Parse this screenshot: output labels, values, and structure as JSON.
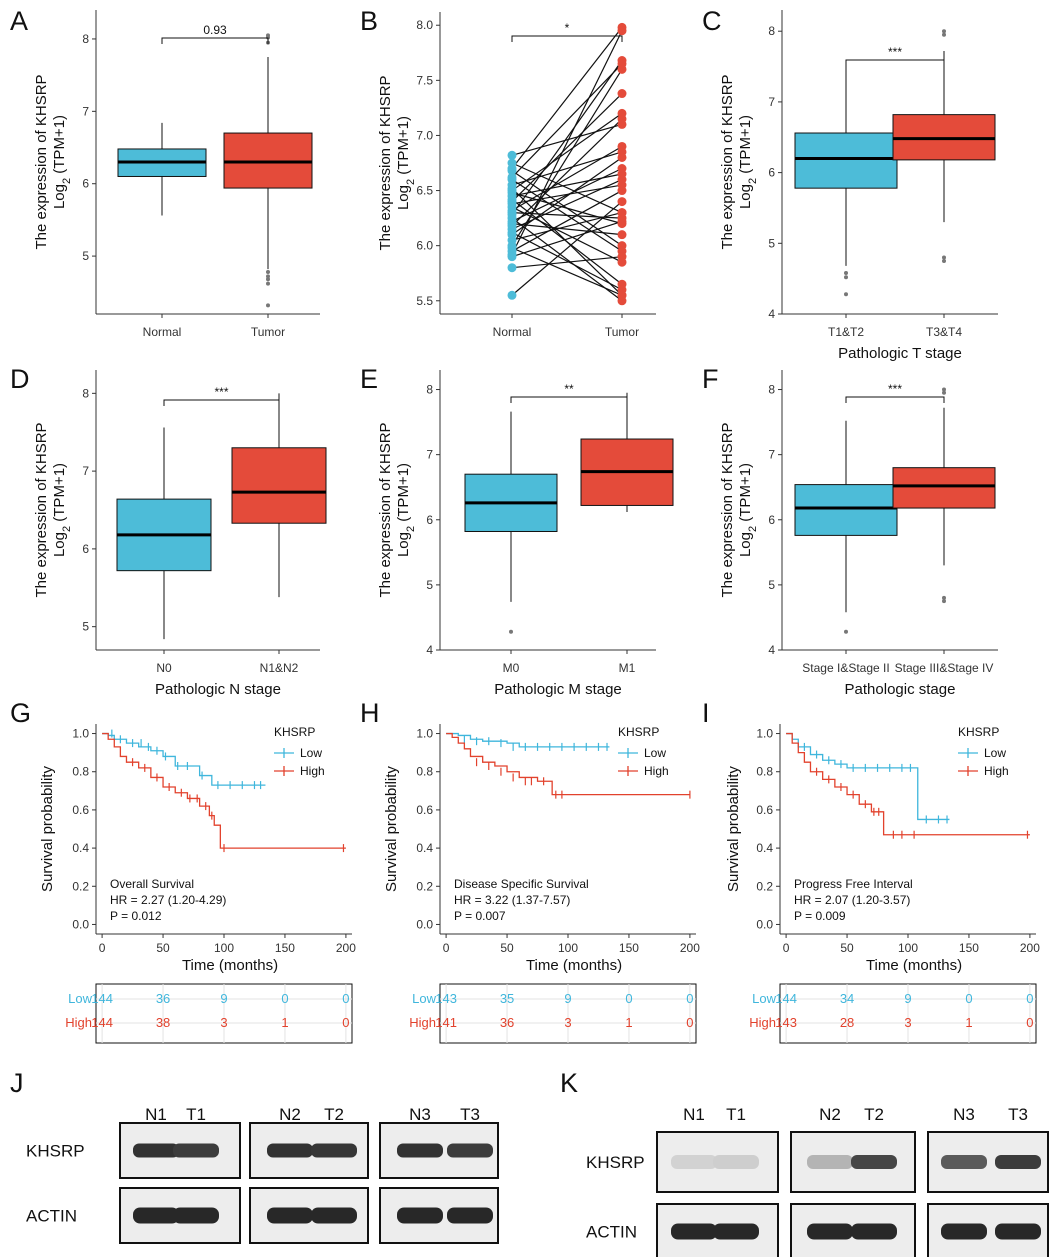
{
  "colors": {
    "normal": "#4dbcd8",
    "tumor": "#e44b3a",
    "low": "#3fb6dc",
    "high": "#e2422d",
    "axis": "#333333"
  },
  "chart_data": [
    {
      "panel": "A",
      "type": "box",
      "title": "",
      "ylabel": "The expression of KHSRP",
      "ylabel2": "Log",
      "ylabel_sub": "2",
      "ylabel3": " (TPM+1)",
      "xlabel": "",
      "categories": [
        "Normal",
        "Tumor"
      ],
      "ylim": [
        4.2,
        8.4
      ],
      "yticks": [
        "5",
        "6",
        "7",
        "8"
      ],
      "ytick_values": [
        5,
        6,
        7,
        8
      ],
      "boxes": [
        {
          "q1": 6.1,
          "median": 6.3,
          "q3": 6.48,
          "min": 5.56,
          "max": 6.84,
          "outliers": []
        },
        {
          "q1": 5.94,
          "median": 6.3,
          "q3": 6.7,
          "min": 4.82,
          "max": 7.75,
          "outliers": [
            4.32,
            4.62,
            4.68,
            4.72,
            4.78,
            8.02,
            8.05,
            7.95
          ]
        }
      ],
      "sig": "0.93"
    },
    {
      "panel": "B",
      "type": "paired",
      "ylabel": "The expression of KHSRP",
      "ylabel2": "Log",
      "ylabel_sub": "2",
      "ylabel3": " (TPM+1)",
      "xlabel": "",
      "categories": [
        "Normal",
        "Tumor"
      ],
      "ylim": [
        5.38,
        8.12
      ],
      "yticks": [
        "5.5",
        "6.0",
        "6.5",
        "7.0",
        "7.5",
        "8.0"
      ],
      "ytick_values": [
        5.5,
        6.0,
        6.5,
        7.0,
        7.5,
        8.0
      ],
      "pairs": [
        [
          6.82,
          7.1
        ],
        [
          6.75,
          6.3
        ],
        [
          6.7,
          7.98
        ],
        [
          6.68,
          6.0
        ],
        [
          6.62,
          7.65
        ],
        [
          6.6,
          5.95
        ],
        [
          6.55,
          6.85
        ],
        [
          6.52,
          5.55
        ],
        [
          6.5,
          7.2
        ],
        [
          6.48,
          6.2
        ],
        [
          6.45,
          6.65
        ],
        [
          6.42,
          5.65
        ],
        [
          6.4,
          7.38
        ],
        [
          6.38,
          6.55
        ],
        [
          6.35,
          5.85
        ],
        [
          6.32,
          6.9
        ],
        [
          6.3,
          6.25
        ],
        [
          6.28,
          7.68
        ],
        [
          6.25,
          5.5
        ],
        [
          6.22,
          6.7
        ],
        [
          6.2,
          6.1
        ],
        [
          6.18,
          7.15
        ],
        [
          6.15,
          6.6
        ],
        [
          6.12,
          5.6
        ],
        [
          6.1,
          6.8
        ],
        [
          6.05,
          6.3
        ],
        [
          6.0,
          7.6
        ],
        [
          5.98,
          5.55
        ],
        [
          5.95,
          6.5
        ],
        [
          5.92,
          7.95
        ],
        [
          5.9,
          6.22
        ],
        [
          5.8,
          5.9
        ],
        [
          5.55,
          6.4
        ]
      ],
      "sig": "*"
    },
    {
      "panel": "C",
      "type": "box",
      "ylabel": "The expression of KHSRP",
      "ylabel2": "Log",
      "ylabel_sub": "2",
      "ylabel3": " (TPM+1)",
      "xlabel": "Pathologic T stage",
      "categories": [
        "T1&T2",
        "T3&T4"
      ],
      "ylim": [
        4.0,
        8.3
      ],
      "yticks": [
        "4",
        "5",
        "6",
        "7",
        "8"
      ],
      "ytick_values": [
        4,
        5,
        6,
        7,
        8
      ],
      "boxes": [
        {
          "q1": 5.78,
          "median": 6.2,
          "q3": 6.56,
          "min": 4.68,
          "max": 7.52,
          "outliers": [
            4.28,
            4.52,
            4.58
          ]
        },
        {
          "q1": 6.18,
          "median": 6.48,
          "q3": 6.82,
          "min": 5.3,
          "max": 7.72,
          "outliers": [
            4.75,
            4.8,
            7.95,
            8.0
          ]
        }
      ],
      "sig": "***"
    },
    {
      "panel": "D",
      "type": "box",
      "ylabel": "The expression of KHSRP",
      "ylabel2": "Log",
      "ylabel_sub": "2",
      "ylabel3": " (TPM+1)",
      "xlabel": "Pathologic N stage",
      "categories": [
        "N0",
        "N1&N2"
      ],
      "ylim": [
        4.7,
        8.3
      ],
      "yticks": [
        "5",
        "6",
        "7",
        "8"
      ],
      "ytick_values": [
        5,
        6,
        7,
        8
      ],
      "boxes": [
        {
          "q1": 5.72,
          "median": 6.18,
          "q3": 6.64,
          "min": 4.84,
          "max": 7.56,
          "outliers": []
        },
        {
          "q1": 6.33,
          "median": 6.73,
          "q3": 7.3,
          "min": 5.38,
          "max": 8.0,
          "outliers": []
        }
      ],
      "sig": "***"
    },
    {
      "panel": "E",
      "type": "box",
      "ylabel": "The expression of KHSRP",
      "ylabel2": "Log",
      "ylabel_sub": "2",
      "ylabel3": " (TPM+1)",
      "xlabel": "Pathologic M stage",
      "categories": [
        "M0",
        "M1"
      ],
      "ylim": [
        4.0,
        8.3
      ],
      "yticks": [
        "4",
        "5",
        "6",
        "7",
        "8"
      ],
      "ytick_values": [
        4,
        5,
        6,
        7,
        8
      ],
      "boxes": [
        {
          "q1": 5.82,
          "median": 6.26,
          "q3": 6.7,
          "min": 4.74,
          "max": 7.66,
          "outliers": [
            4.28
          ]
        },
        {
          "q1": 6.22,
          "median": 6.74,
          "q3": 7.24,
          "min": 6.12,
          "max": 7.95,
          "outliers": []
        }
      ],
      "sig": "**"
    },
    {
      "panel": "F",
      "type": "box",
      "ylabel": "The expression of KHSRP",
      "ylabel2": "Log",
      "ylabel_sub": "2",
      "ylabel3": " (TPM+1)",
      "xlabel": "Pathologic stage",
      "categories": [
        "Stage I&Stage II",
        "Stage III&Stage IV"
      ],
      "ylim": [
        4.0,
        8.3
      ],
      "yticks": [
        "4",
        "5",
        "6",
        "7",
        "8"
      ],
      "ytick_values": [
        4,
        5,
        6,
        7,
        8
      ],
      "boxes": [
        {
          "q1": 5.76,
          "median": 6.18,
          "q3": 6.54,
          "min": 4.58,
          "max": 7.52,
          "outliers": [
            4.28
          ]
        },
        {
          "q1": 6.18,
          "median": 6.52,
          "q3": 6.8,
          "min": 5.3,
          "max": 7.72,
          "outliers": [
            4.75,
            4.8,
            7.95,
            8.0
          ]
        }
      ],
      "sig": "***"
    },
    {
      "panel": "G",
      "type": "km",
      "ylabel": "Survival probability",
      "xlabel": "Time (months)",
      "xlim": [
        -5,
        205
      ],
      "ylim": [
        -0.05,
        1.05
      ],
      "xticks": [
        "0",
        "50",
        "100",
        "150",
        "200"
      ],
      "xtick_values": [
        0,
        50,
        100,
        150,
        200
      ],
      "yticks": [
        "0.0",
        "0.2",
        "0.4",
        "0.6",
        "0.8",
        "1.0"
      ],
      "ytick_values": [
        0,
        0.2,
        0.4,
        0.6,
        0.8,
        1.0
      ],
      "legend_title": "KHSRP",
      "legend": [
        "Low",
        "High"
      ],
      "annotation": [
        "Overall Survival",
        "HR = 2.27 (1.20-4.29)",
        "P = 0.012"
      ],
      "series": [
        {
          "name": "Low",
          "x": [
            0,
            5,
            10,
            20,
            30,
            40,
            50,
            60,
            80,
            90,
            100,
            134
          ],
          "y": [
            1.0,
            0.99,
            0.97,
            0.95,
            0.93,
            0.91,
            0.88,
            0.83,
            0.78,
            0.73,
            0.73,
            0.73
          ],
          "censor": [
            [
              8,
              1.0
            ],
            [
              15,
              0.97
            ],
            [
              25,
              0.95
            ],
            [
              32,
              0.95
            ],
            [
              38,
              0.93
            ],
            [
              45,
              0.91
            ],
            [
              52,
              0.88
            ],
            [
              62,
              0.83
            ],
            [
              70,
              0.83
            ],
            [
              82,
              0.78
            ],
            [
              95,
              0.73
            ],
            [
              105,
              0.73
            ],
            [
              115,
              0.73
            ],
            [
              125,
              0.73
            ],
            [
              130,
              0.73
            ]
          ]
        },
        {
          "name": "High",
          "x": [
            0,
            5,
            10,
            15,
            20,
            30,
            40,
            50,
            60,
            70,
            80,
            88,
            92,
            97,
            200
          ],
          "y": [
            1.0,
            0.97,
            0.93,
            0.88,
            0.85,
            0.82,
            0.77,
            0.72,
            0.69,
            0.66,
            0.62,
            0.57,
            0.52,
            0.4,
            0.4
          ],
          "censor": [
            [
              25,
              0.85
            ],
            [
              35,
              0.82
            ],
            [
              45,
              0.77
            ],
            [
              55,
              0.72
            ],
            [
              65,
              0.69
            ],
            [
              72,
              0.66
            ],
            [
              78,
              0.66
            ],
            [
              85,
              0.62
            ],
            [
              90,
              0.57
            ],
            [
              100,
              0.4
            ],
            [
              198,
              0.4
            ]
          ]
        }
      ],
      "risk_table": {
        "labels": [
          "Low",
          "High"
        ],
        "rows": [
          [
            "144",
            "36",
            "9",
            "0",
            "0"
          ],
          [
            "144",
            "38",
            "3",
            "1",
            "0"
          ]
        ]
      }
    },
    {
      "panel": "H",
      "type": "km",
      "ylabel": "Survival probability",
      "xlabel": "Time (months)",
      "xlim": [
        -5,
        205
      ],
      "ylim": [
        -0.05,
        1.05
      ],
      "xticks": [
        "0",
        "50",
        "100",
        "150",
        "200"
      ],
      "xtick_values": [
        0,
        50,
        100,
        150,
        200
      ],
      "yticks": [
        "0.0",
        "0.2",
        "0.4",
        "0.6",
        "0.8",
        "1.0"
      ],
      "ytick_values": [
        0,
        0.2,
        0.4,
        0.6,
        0.8,
        1.0
      ],
      "legend_title": "KHSRP",
      "legend": [
        "Low",
        "High"
      ],
      "annotation": [
        "Disease Specific Survival",
        "HR = 3.22 (1.37-7.57)",
        "P = 0.007"
      ],
      "series": [
        {
          "name": "Low",
          "x": [
            0,
            10,
            20,
            30,
            50,
            60,
            134
          ],
          "y": [
            1.0,
            0.99,
            0.97,
            0.96,
            0.95,
            0.93,
            0.93
          ],
          "censor": [
            [
              15,
              0.97
            ],
            [
              25,
              0.96
            ],
            [
              35,
              0.96
            ],
            [
              45,
              0.95
            ],
            [
              55,
              0.93
            ],
            [
              65,
              0.93
            ],
            [
              75,
              0.93
            ],
            [
              85,
              0.93
            ],
            [
              95,
              0.93
            ],
            [
              105,
              0.93
            ],
            [
              115,
              0.93
            ],
            [
              125,
              0.93
            ],
            [
              132,
              0.93
            ]
          ]
        },
        {
          "name": "High",
          "x": [
            0,
            5,
            10,
            15,
            20,
            30,
            40,
            50,
            60,
            75,
            87,
            200
          ],
          "y": [
            1.0,
            0.98,
            0.95,
            0.92,
            0.88,
            0.85,
            0.83,
            0.8,
            0.77,
            0.75,
            0.68,
            0.68
          ],
          "censor": [
            [
              25,
              0.85
            ],
            [
              35,
              0.83
            ],
            [
              45,
              0.8
            ],
            [
              55,
              0.77
            ],
            [
              65,
              0.75
            ],
            [
              70,
              0.75
            ],
            [
              80,
              0.75
            ],
            [
              90,
              0.68
            ],
            [
              95,
              0.68
            ],
            [
              200,
              0.68
            ]
          ]
        }
      ],
      "risk_table": {
        "labels": [
          "Low",
          "High"
        ],
        "rows": [
          [
            "143",
            "35",
            "9",
            "0",
            "0"
          ],
          [
            "141",
            "36",
            "3",
            "1",
            "0"
          ]
        ]
      }
    },
    {
      "panel": "I",
      "type": "km",
      "ylabel": "Survival probability",
      "xlabel": "Time (months)",
      "xlim": [
        -5,
        205
      ],
      "ylim": [
        -0.05,
        1.05
      ],
      "xticks": [
        "0",
        "50",
        "100",
        "150",
        "200"
      ],
      "xtick_values": [
        0,
        50,
        100,
        150,
        200
      ],
      "yticks": [
        "0.0",
        "0.2",
        "0.4",
        "0.6",
        "0.8",
        "1.0"
      ],
      "ytick_values": [
        0,
        0.2,
        0.4,
        0.6,
        0.8,
        1.0
      ],
      "legend_title": "KHSRP",
      "legend": [
        "Low",
        "High"
      ],
      "annotation": [
        "Progress Free Interval",
        "HR = 2.07 (1.20-3.57)",
        "P = 0.009"
      ],
      "series": [
        {
          "name": "Low",
          "x": [
            0,
            5,
            10,
            20,
            30,
            40,
            50,
            104,
            108,
            134
          ],
          "y": [
            1.0,
            0.97,
            0.93,
            0.89,
            0.86,
            0.84,
            0.82,
            0.82,
            0.55,
            0.55
          ],
          "censor": [
            [
              15,
              0.93
            ],
            [
              25,
              0.89
            ],
            [
              35,
              0.86
            ],
            [
              45,
              0.84
            ],
            [
              55,
              0.82
            ],
            [
              65,
              0.82
            ],
            [
              75,
              0.82
            ],
            [
              85,
              0.82
            ],
            [
              95,
              0.82
            ],
            [
              102,
              0.82
            ],
            [
              115,
              0.55
            ],
            [
              125,
              0.55
            ],
            [
              132,
              0.55
            ]
          ]
        },
        {
          "name": "High",
          "x": [
            0,
            5,
            10,
            15,
            20,
            30,
            40,
            50,
            60,
            70,
            80,
            200
          ],
          "y": [
            1.0,
            0.95,
            0.9,
            0.85,
            0.8,
            0.76,
            0.72,
            0.68,
            0.63,
            0.59,
            0.47,
            0.47
          ],
          "censor": [
            [
              25,
              0.8
            ],
            [
              35,
              0.76
            ],
            [
              45,
              0.72
            ],
            [
              55,
              0.68
            ],
            [
              65,
              0.63
            ],
            [
              72,
              0.59
            ],
            [
              76,
              0.59
            ],
            [
              88,
              0.47
            ],
            [
              95,
              0.47
            ],
            [
              105,
              0.47
            ],
            [
              198,
              0.47
            ]
          ]
        }
      ],
      "risk_table": {
        "labels": [
          "Low",
          "High"
        ],
        "rows": [
          [
            "144",
            "34",
            "9",
            "0",
            "0"
          ],
          [
            "143",
            "28",
            "3",
            "1",
            "0"
          ]
        ]
      }
    }
  ],
  "blots": [
    {
      "panel": "J",
      "lanes": [
        "N1",
        "T1",
        "N2",
        "T2",
        "N3",
        "T3"
      ],
      "rows": [
        "KHSRP",
        "ACTIN"
      ],
      "khsrp_intensity": [
        0.9,
        0.85,
        0.9,
        0.88,
        0.9,
        0.85
      ],
      "actin_intensity": [
        0.95,
        0.95,
        0.95,
        0.95,
        0.95,
        0.95
      ]
    },
    {
      "panel": "K",
      "lanes": [
        "N1",
        "T1",
        "N2",
        "T2",
        "N3",
        "T3"
      ],
      "rows": [
        "KHSRP",
        "ACTIN"
      ],
      "khsrp_intensity": [
        0.1,
        0.12,
        0.25,
        0.8,
        0.7,
        0.85
      ],
      "actin_intensity": [
        0.95,
        0.95,
        0.95,
        0.95,
        0.95,
        0.95
      ]
    }
  ]
}
